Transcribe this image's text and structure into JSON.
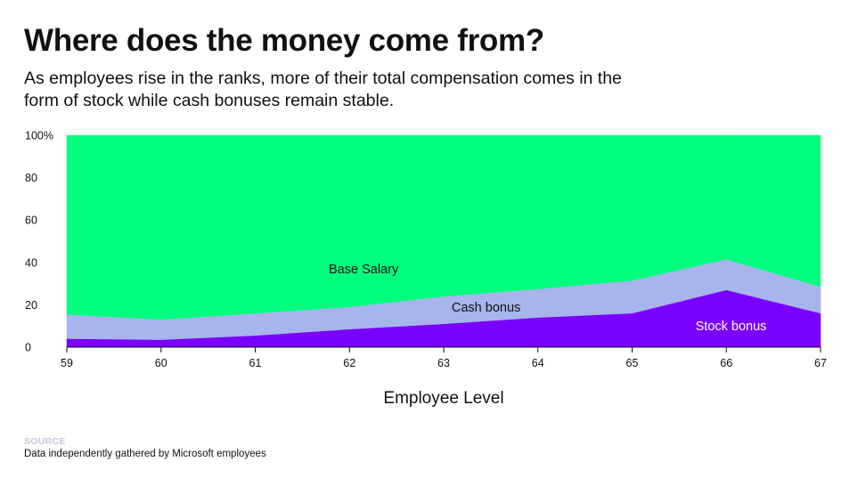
{
  "header": {
    "title": "Where does the money come from?",
    "subtitle": "As employees rise in the ranks, more of their total compensation comes in the form of stock while cash bonuses remain stable."
  },
  "footer": {
    "source_label": "SOURCE",
    "source_text": "Data independently gathered by Microsoft employees"
  },
  "chart_data": {
    "type": "area",
    "stacked": true,
    "xlabel": "Employee Level",
    "ylabel": "",
    "x": [
      59,
      60,
      61,
      62,
      63,
      64,
      65,
      66,
      67
    ],
    "ylim": [
      0,
      100
    ],
    "y_ticks": [
      "0",
      "20",
      "40",
      "60",
      "80",
      "100%"
    ],
    "series": [
      {
        "name": "Stock bonus",
        "color": "#7a00ff",
        "label_color": "#ffffff",
        "values": [
          4,
          3.5,
          5.5,
          8.5,
          11,
          14,
          16,
          27,
          16
        ]
      },
      {
        "name": "Cash bonus",
        "color": "#a8b4ec",
        "label_color": "#111111",
        "values": [
          11.5,
          9.5,
          10.5,
          10.5,
          13,
          13.5,
          15.5,
          14.5,
          12.5
        ]
      },
      {
        "name": "Base Salary",
        "color": "#00ff7f",
        "label_color": "#111111",
        "values": [
          84.5,
          87,
          84,
          81,
          76,
          72.5,
          68.5,
          58.5,
          71.5
        ]
      }
    ],
    "legend": "inline labels inside areas"
  }
}
